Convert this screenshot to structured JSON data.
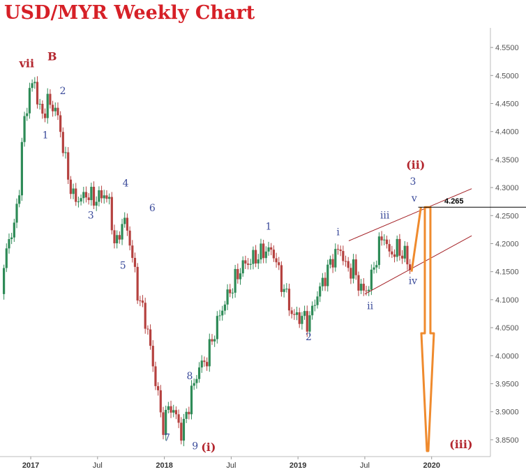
{
  "chart_data": {
    "type": "candlestick",
    "title": "USD/MYR Weekly Chart",
    "y_ticks": [
      "3.8500",
      "3.9000",
      "3.9500",
      "4.0000",
      "4.0500",
      "4.1000",
      "4.1500",
      "4.2000",
      "4.2500",
      "4.3000",
      "4.3500",
      "4.4000",
      "4.4500",
      "4.5000",
      "4.5500"
    ],
    "x_ticks": [
      {
        "label": "2017",
        "t": 2017.0
      },
      {
        "label": "Jul",
        "t": 2017.5
      },
      {
        "label": "2018",
        "t": 2018.0
      },
      {
        "label": "Jul",
        "t": 2018.5
      },
      {
        "label": "2019",
        "t": 2019.0
      },
      {
        "label": "Jul",
        "t": 2019.5
      },
      {
        "label": "2020",
        "t": 2020.0
      }
    ],
    "ylim": [
      3.82,
      4.58
    ],
    "xlim": [
      2016.77,
      2020.44
    ],
    "price_path": [
      [
        2016.78,
        4.11
      ],
      [
        2016.83,
        4.21
      ],
      [
        2016.87,
        4.22
      ],
      [
        2016.91,
        4.29
      ],
      [
        2016.95,
        4.42
      ],
      [
        2017.0,
        4.48
      ],
      [
        2017.03,
        4.49
      ],
      [
        2017.06,
        4.44
      ],
      [
        2017.09,
        4.43
      ],
      [
        2017.12,
        4.45
      ],
      [
        2017.15,
        4.45
      ],
      [
        2017.18,
        4.44
      ],
      [
        2017.21,
        4.42
      ],
      [
        2017.25,
        4.36
      ],
      [
        2017.28,
        4.32
      ],
      [
        2017.32,
        4.28
      ],
      [
        2017.35,
        4.28
      ],
      [
        2017.38,
        4.28
      ],
      [
        2017.42,
        4.29
      ],
      [
        2017.46,
        4.28
      ],
      [
        2017.5,
        4.28
      ],
      [
        2017.55,
        4.29
      ],
      [
        2017.59,
        4.27
      ],
      [
        2017.62,
        4.21
      ],
      [
        2017.64,
        4.19
      ],
      [
        2017.67,
        4.23
      ],
      [
        2017.7,
        4.24
      ],
      [
        2017.73,
        4.22
      ],
      [
        2017.77,
        4.16
      ],
      [
        2017.81,
        4.1
      ],
      [
        2017.84,
        4.08
      ],
      [
        2017.88,
        4.04
      ],
      [
        2017.92,
        3.97
      ],
      [
        2017.95,
        3.94
      ],
      [
        2017.98,
        3.87
      ],
      [
        2018.02,
        3.9
      ],
      [
        2018.05,
        3.91
      ],
      [
        2018.09,
        3.89
      ],
      [
        2018.13,
        3.86
      ],
      [
        2018.17,
        3.9
      ],
      [
        2018.21,
        3.94
      ],
      [
        2018.26,
        3.98
      ],
      [
        2018.31,
        3.99
      ],
      [
        2018.36,
        4.03
      ],
      [
        2018.41,
        4.07
      ],
      [
        2018.46,
        4.1
      ],
      [
        2018.52,
        4.13
      ],
      [
        2018.58,
        4.16
      ],
      [
        2018.65,
        4.17
      ],
      [
        2018.71,
        4.18
      ],
      [
        2018.77,
        4.19
      ],
      [
        2018.83,
        4.18
      ],
      [
        2018.86,
        4.14
      ],
      [
        2018.91,
        4.11
      ],
      [
        2018.96,
        4.07
      ],
      [
        2019.02,
        4.07
      ],
      [
        2019.08,
        4.06
      ],
      [
        2019.13,
        4.1
      ],
      [
        2019.2,
        4.14
      ],
      [
        2019.27,
        4.18
      ],
      [
        2019.32,
        4.19
      ],
      [
        2019.37,
        4.15
      ],
      [
        2019.41,
        4.16
      ],
      [
        2019.45,
        4.13
      ],
      [
        2019.5,
        4.11
      ],
      [
        2019.55,
        4.14
      ],
      [
        2019.6,
        4.19
      ],
      [
        2019.64,
        4.22
      ],
      [
        2019.68,
        4.18
      ],
      [
        2019.74,
        4.19
      ],
      [
        2019.8,
        4.18
      ],
      [
        2019.85,
        4.15
      ]
    ],
    "trend_lines": [
      {
        "from": [
          2019.38,
          4.205
        ],
        "to": [
          2020.3,
          4.298
        ]
      },
      {
        "from": [
          2019.5,
          4.11
        ],
        "to": [
          2020.3,
          4.214
        ]
      }
    ],
    "horizontal_level": {
      "value": 4.265,
      "label": "4.265",
      "from_t": 2019.9
    },
    "projection_path": [
      [
        2019.85,
        4.15
      ],
      [
        2019.92,
        4.265
      ],
      [
        2020.0,
        4.04
      ],
      [
        2020.05,
        3.83
      ]
    ],
    "wave_labels": [
      {
        "text": "vii",
        "t": 2016.97,
        "y": 4.515,
        "color": "red"
      },
      {
        "text": "B",
        "t": 2017.16,
        "y": 4.527,
        "color": "red"
      },
      {
        "text": "1",
        "t": 2017.11,
        "y": 4.388,
        "color": "blue"
      },
      {
        "text": "2",
        "t": 2017.24,
        "y": 4.467,
        "color": "blue"
      },
      {
        "text": "3",
        "t": 2017.45,
        "y": 4.245,
        "color": "blue"
      },
      {
        "text": "4",
        "t": 2017.71,
        "y": 4.302,
        "color": "blue"
      },
      {
        "text": "5",
        "t": 2017.69,
        "y": 4.155,
        "color": "blue"
      },
      {
        "text": "6",
        "t": 2017.91,
        "y": 4.258,
        "color": "blue"
      },
      {
        "text": "7",
        "t": 2018.02,
        "y": 3.848,
        "color": "blue"
      },
      {
        "text": "8",
        "t": 2018.19,
        "y": 3.958,
        "color": "blue"
      },
      {
        "text": "9",
        "t": 2018.23,
        "y": 3.833,
        "color": "blue"
      },
      {
        "text": "(i)",
        "t": 2018.33,
        "y": 3.83,
        "color": "red"
      },
      {
        "text": "1",
        "t": 2018.78,
        "y": 4.225,
        "color": "blue"
      },
      {
        "text": "2",
        "t": 2019.08,
        "y": 4.028,
        "color": "blue"
      },
      {
        "text": "i",
        "t": 2019.3,
        "y": 4.215,
        "color": "blue"
      },
      {
        "text": "ii",
        "t": 2019.54,
        "y": 4.083,
        "color": "blue"
      },
      {
        "text": "iii",
        "t": 2019.65,
        "y": 4.245,
        "color": "blue"
      },
      {
        "text": "iv",
        "t": 2019.86,
        "y": 4.128,
        "color": "blue"
      },
      {
        "text": "v",
        "t": 2019.87,
        "y": 4.275,
        "color": "blue"
      },
      {
        "text": "3",
        "t": 2019.86,
        "y": 4.305,
        "color": "blue"
      },
      {
        "text": "(ii)",
        "t": 2019.88,
        "y": 4.334,
        "color": "red"
      },
      {
        "text": "(iii)",
        "t": 2020.22,
        "y": 3.835,
        "color": "red"
      }
    ],
    "colors": {
      "up": "#2e8b57",
      "down": "#b5413f",
      "title": "#d62027",
      "wave_blue": "#3a4a9a",
      "wave_red": "#b3262e",
      "trend": "#a31f24",
      "projection": "#ef8a2d"
    }
  }
}
